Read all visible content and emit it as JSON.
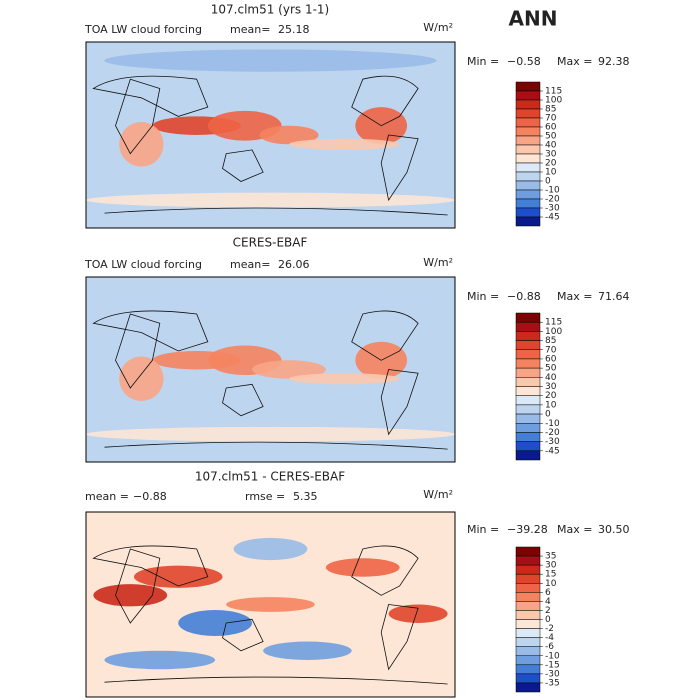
{
  "header": {
    "season": "ANN"
  },
  "panels": [
    {
      "title": "107.clm51 (yrs 1-1)",
      "variable": "TOA LW cloud forcing",
      "stats": [
        {
          "label": "mean=",
          "value": "25.18"
        }
      ],
      "units": "W/m²",
      "range": {
        "min_label": "Min =",
        "min": "−0.58",
        "max_label": "Max =",
        "max": "92.38"
      },
      "colorbar": {
        "levels": [
          115,
          100,
          85,
          70,
          60,
          50,
          40,
          30,
          20,
          10,
          0,
          -10,
          -20,
          -30,
          -45
        ],
        "colors": [
          "#7a0403",
          "#a50f15",
          "#cb2a1a",
          "#e0452b",
          "#ee6446",
          "#f5835f",
          "#f8a586",
          "#fbc8ad",
          "#fde6d6",
          "#dce9f6",
          "#bdd5ef",
          "#98bbe8",
          "#6f9ee0",
          "#447fd6",
          "#1d4fcc",
          "#0a1a8c"
        ]
      }
    },
    {
      "title": "CERES-EBAF",
      "variable": "TOA LW cloud forcing",
      "stats": [
        {
          "label": "mean=",
          "value": "26.06"
        }
      ],
      "units": "W/m²",
      "range": {
        "min_label": "Min =",
        "min": "−0.88",
        "max_label": "Max =",
        "max": "71.64"
      },
      "colorbar": {
        "levels": [
          115,
          100,
          85,
          70,
          60,
          50,
          40,
          30,
          20,
          10,
          0,
          -10,
          -20,
          -30,
          -45
        ],
        "colors": [
          "#7a0403",
          "#a50f15",
          "#cb2a1a",
          "#e0452b",
          "#ee6446",
          "#f5835f",
          "#f8a586",
          "#fbc8ad",
          "#fde6d6",
          "#dce9f6",
          "#bdd5ef",
          "#98bbe8",
          "#6f9ee0",
          "#447fd6",
          "#1d4fcc",
          "#0a1a8c"
        ]
      }
    },
    {
      "title": "107.clm51 - CERES-EBAF",
      "variable": null,
      "stats": [
        {
          "label": "mean =",
          "value": "−0.88"
        },
        {
          "label": "rmse =",
          "value": "5.35"
        }
      ],
      "units": "W/m²",
      "range": {
        "min_label": "Min =",
        "min": "−39.28",
        "max_label": "Max =",
        "max": "30.50"
      },
      "colorbar": {
        "levels": [
          35,
          30,
          15,
          10,
          6,
          4,
          2,
          0,
          -2,
          -4,
          -6,
          -10,
          -15,
          -30,
          -35
        ],
        "colors": [
          "#7a0403",
          "#a50f15",
          "#cb2a1a",
          "#e0452b",
          "#ee6446",
          "#f5835f",
          "#f8a586",
          "#fbc8ad",
          "#fde6d6",
          "#dce9f6",
          "#bdd5ef",
          "#98bbe8",
          "#6f9ee0",
          "#447fd6",
          "#1d4fcc",
          "#0a1a8c"
        ]
      }
    }
  ]
}
